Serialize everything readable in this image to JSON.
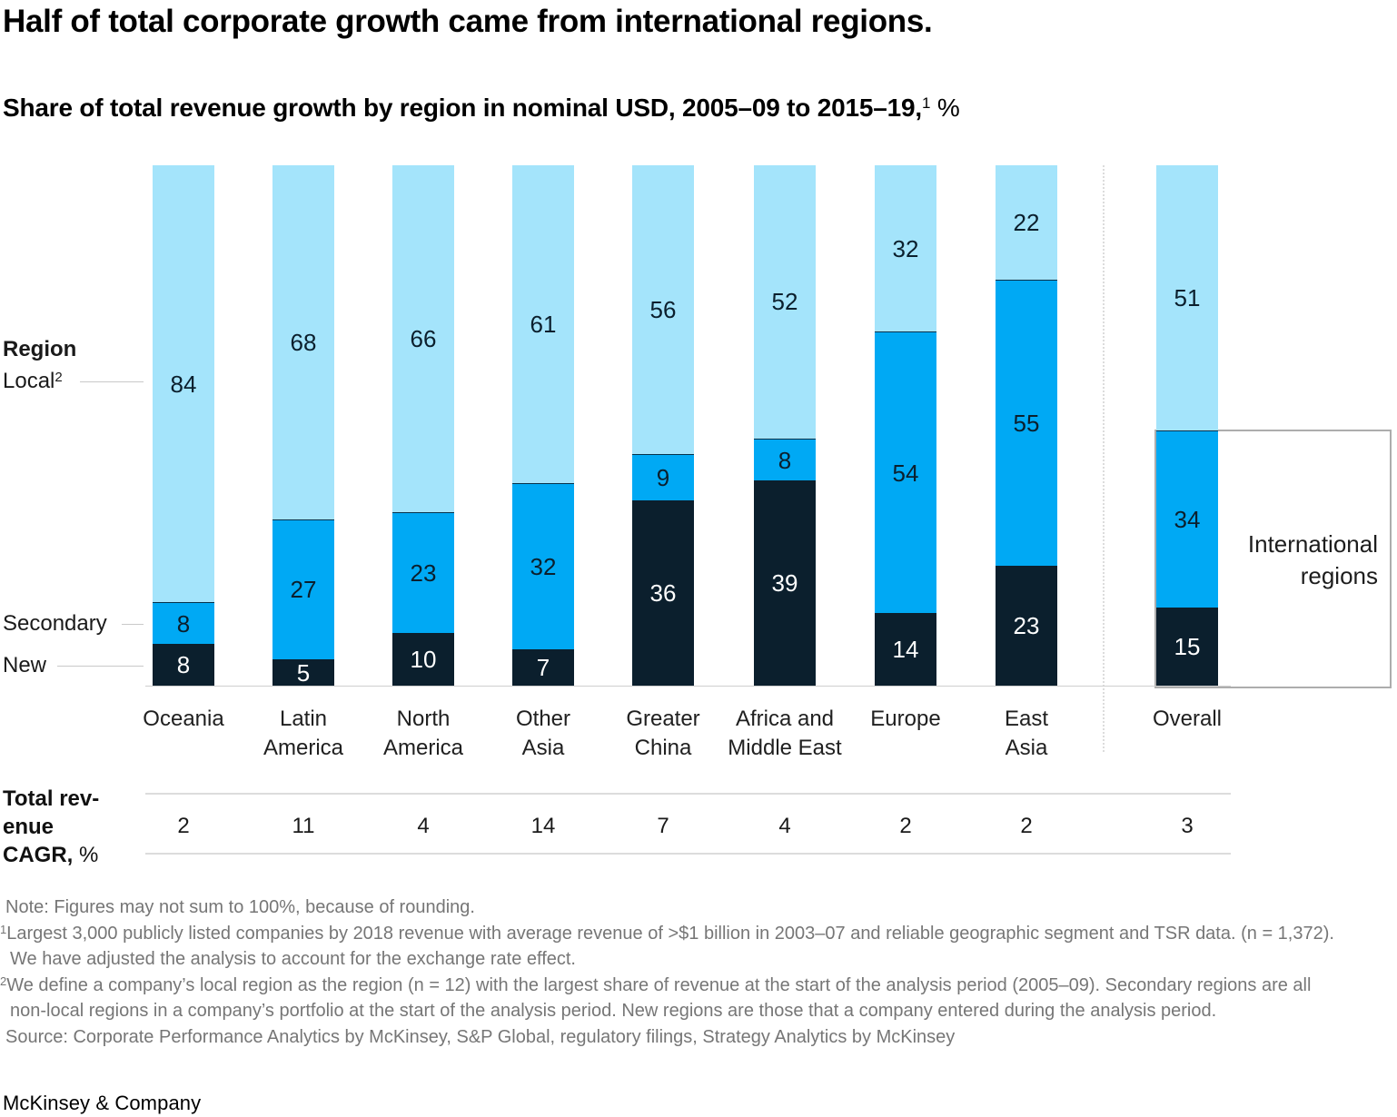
{
  "title": "Half of total corporate growth came from international regions.",
  "subtitle": {
    "main": "Share of total revenue growth by region in nominal USD, 2005–09 to 2015–19,",
    "sup": "1",
    "suffix": " %"
  },
  "legend": {
    "heading": "Region",
    "local_label": "Local",
    "local_sup": "2",
    "secondary_label": "Secondary",
    "new_label": "New"
  },
  "annotation": {
    "line1": "International",
    "line2": "regions"
  },
  "cagr_row_label": {
    "line1": "Total rev-",
    "line2": "enue",
    "line3_bold": "CAGR,",
    "line3_regular": " %"
  },
  "chart_data": {
    "type": "bar",
    "stacked": true,
    "unit": "%",
    "title": "Share of total revenue growth by region in nominal USD, 2005–09 to 2015–19, %",
    "note": "Bars drawn full height; figures may not sum to 100% because of rounding",
    "categories": [
      "Oceania",
      "Latin America",
      "North America",
      "Other Asia",
      "Greater China",
      "Africa and Middle East",
      "Europe",
      "East Asia",
      "Overall"
    ],
    "category_lines": [
      [
        "Oceania"
      ],
      [
        "Latin",
        "America"
      ],
      [
        "North",
        "America"
      ],
      [
        "Other",
        "Asia"
      ],
      [
        "Greater",
        "China"
      ],
      [
        "Africa and",
        "Middle East"
      ],
      [
        "Europe"
      ],
      [
        "East",
        "Asia"
      ],
      [
        "Overall"
      ]
    ],
    "series": [
      {
        "name": "Local",
        "color": "#A4E4FB",
        "label_color": "#0B1F2D",
        "values": [
          84,
          68,
          66,
          61,
          56,
          52,
          32,
          22,
          51
        ]
      },
      {
        "name": "Secondary",
        "color": "#00A9F4",
        "label_color": "#0B1F2D",
        "values": [
          8,
          27,
          23,
          32,
          9,
          8,
          54,
          55,
          34
        ]
      },
      {
        "name": "New",
        "color": "#0B1F2D",
        "label_color": "#FFFFFF",
        "values": [
          8,
          5,
          10,
          7,
          36,
          39,
          14,
          23,
          15
        ]
      }
    ],
    "cagr_values": [
      "2",
      "11",
      "4",
      "14",
      "7",
      "4",
      "2",
      "2",
      "3"
    ],
    "legend_position": "left",
    "annotation_box": "International regions (spans Secondary + New segments of Overall bar)"
  },
  "footnotes": [
    {
      "sup": "",
      "cont": false,
      "text": "Note: Figures may not sum to 100%, because of rounding."
    },
    {
      "sup": "1",
      "cont": false,
      "text": "Largest 3,000 publicly listed companies by 2018 revenue with average revenue of >$1 billion in 2003–07 and reliable geographic segment and TSR data. (n = 1,372)."
    },
    {
      "sup": "",
      "cont": true,
      "text": "We have adjusted the analysis to account for the exchange rate effect."
    },
    {
      "sup": "2",
      "cont": false,
      "text": "We define a company’s local region as the region (n = 12) with the largest share of revenue at the start of the analysis period (2005–09). Secondary regions are all"
    },
    {
      "sup": "",
      "cont": true,
      "text": "non-local regions in a company’s portfolio at the start of the analysis period. New regions are those that a company entered during the analysis period."
    },
    {
      "sup": "",
      "cont": false,
      "text": "Source: Corporate Performance Analytics by McKinsey, S&P Global, regulatory filings, Strategy Analytics by McKinsey"
    }
  ],
  "brand": "McKinsey & Company",
  "colors": {
    "local": "#A4E4FB",
    "secondary": "#00A9F4",
    "new": "#0B1F2D",
    "footnote_gray": "#767676",
    "line_gray": "#CFCFCF",
    "bracket_gray": "#ADADAD"
  }
}
